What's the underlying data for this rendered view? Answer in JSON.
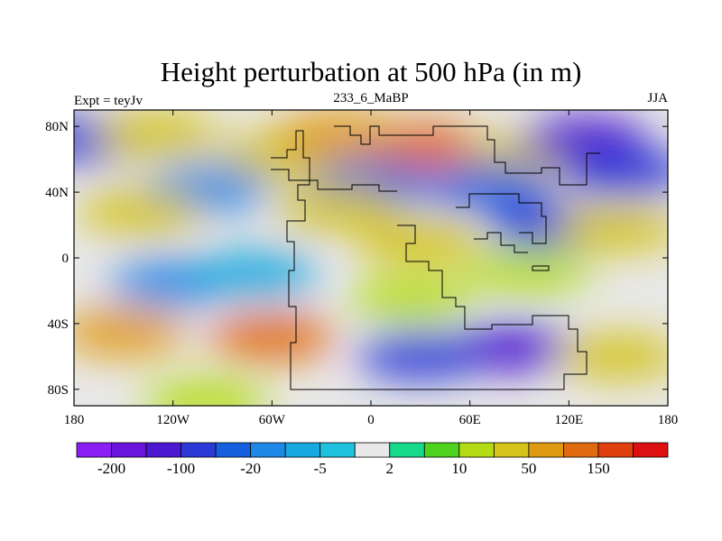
{
  "chart_data": {
    "type": "heatmap",
    "title": "Height perturbation at 500 hPa (in m)",
    "left_label": "Expt = teyJv",
    "center_label": "233_6_MaBP",
    "right_label": "JJA",
    "x_ticks": [
      "180",
      "120W",
      "60W",
      "0",
      "60E",
      "120E",
      "180"
    ],
    "x_tick_values": [
      -180,
      -120,
      -60,
      0,
      60,
      120,
      180
    ],
    "y_ticks": [
      "80N",
      "40N",
      "0",
      "40S",
      "80S"
    ],
    "y_tick_values": [
      80,
      40,
      0,
      -40,
      -80
    ],
    "xlim": [
      -180,
      180
    ],
    "ylim": [
      -90,
      90
    ],
    "colorbar": {
      "colors": [
        "#8a1ef5",
        "#6a14dc",
        "#4b19d2",
        "#2b3ad6",
        "#1660e0",
        "#1e88e6",
        "#17a8e0",
        "#1ec2df",
        "#e8e8e8",
        "#17d98a",
        "#4fd11e",
        "#b4dc14",
        "#d4c31a",
        "#e09a12",
        "#e06a10",
        "#e0400e",
        "#dc1010"
      ],
      "labels": [
        "-200",
        "-100",
        "-20",
        "-5",
        "2",
        "10",
        "50",
        "150"
      ]
    },
    "field_centers": [
      {
        "lon": 30,
        "lat": 68,
        "value": 110
      },
      {
        "lon": -55,
        "lat": 62,
        "value": 40
      },
      {
        "lon": 95,
        "lat": 62,
        "value": 30
      },
      {
        "lon": 130,
        "lat": 72,
        "value": -150
      },
      {
        "lon": 155,
        "lat": 52,
        "value": -60
      },
      {
        "lon": -175,
        "lat": 72,
        "value": -70
      },
      {
        "lon": -130,
        "lat": 75,
        "value": 20
      },
      {
        "lon": -20,
        "lat": 75,
        "value": 60
      },
      {
        "lon": 0,
        "lat": 45,
        "value": -40
      },
      {
        "lon": -100,
        "lat": 42,
        "value": -20
      },
      {
        "lon": 70,
        "lat": 43,
        "value": -50
      },
      {
        "lon": 110,
        "lat": 20,
        "value": -70
      },
      {
        "lon": -20,
        "lat": 30,
        "value": 45
      },
      {
        "lon": -140,
        "lat": 28,
        "value": 25
      },
      {
        "lon": 30,
        "lat": 10,
        "value": 25
      },
      {
        "lon": 150,
        "lat": 18,
        "value": 25
      },
      {
        "lon": 95,
        "lat": -8,
        "value": 12
      },
      {
        "lon": -120,
        "lat": -15,
        "value": -15
      },
      {
        "lon": -70,
        "lat": -10,
        "value": -8
      },
      {
        "lon": 25,
        "lat": -25,
        "value": 18
      },
      {
        "lon": -60,
        "lat": -48,
        "value": 145
      },
      {
        "lon": -150,
        "lat": -45,
        "value": 55
      },
      {
        "lon": 85,
        "lat": -55,
        "value": -150
      },
      {
        "lon": 30,
        "lat": -60,
        "value": -70
      },
      {
        "lon": 150,
        "lat": -60,
        "value": 30
      },
      {
        "lon": -100,
        "lat": -88,
        "value": 10
      }
    ]
  }
}
